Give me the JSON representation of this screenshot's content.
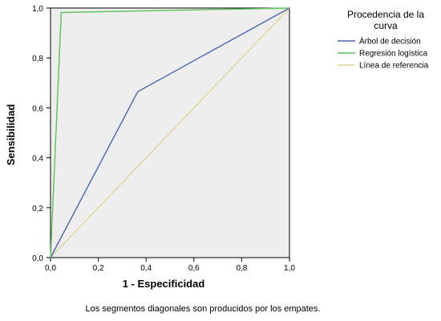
{
  "chart_data": {
    "type": "line",
    "xlabel": "1 - Especificidad",
    "ylabel": "Sensibilidad",
    "xlim": [
      0,
      1
    ],
    "ylim": [
      0,
      1
    ],
    "xticks": [
      "0,0",
      "0,2",
      "0,4",
      "0,6",
      "0,8",
      "1,0"
    ],
    "yticks": [
      "0,0",
      "0,2",
      "0,4",
      "0,6",
      "0,8",
      "1,0"
    ],
    "grid": false,
    "legend": {
      "title_line1": "Procedencia de la",
      "title_line2": "curva",
      "placement": "right"
    },
    "series": [
      {
        "name": "Árbol de decisión",
        "color": "#4a66b2",
        "points": [
          [
            0,
            0
          ],
          [
            0.365,
            0.665
          ],
          [
            1,
            1
          ]
        ]
      },
      {
        "name": "Regresión logística",
        "color": "#57c35c",
        "points": [
          [
            0,
            0
          ],
          [
            0.045,
            0.982
          ],
          [
            1,
            1
          ]
        ]
      },
      {
        "name": "Línea de referencia",
        "color": "#e0d49a",
        "points": [
          [
            0,
            0
          ],
          [
            1,
            1
          ]
        ]
      }
    ],
    "footnote": "Los segmentos diagonales son producidos por los empates."
  }
}
